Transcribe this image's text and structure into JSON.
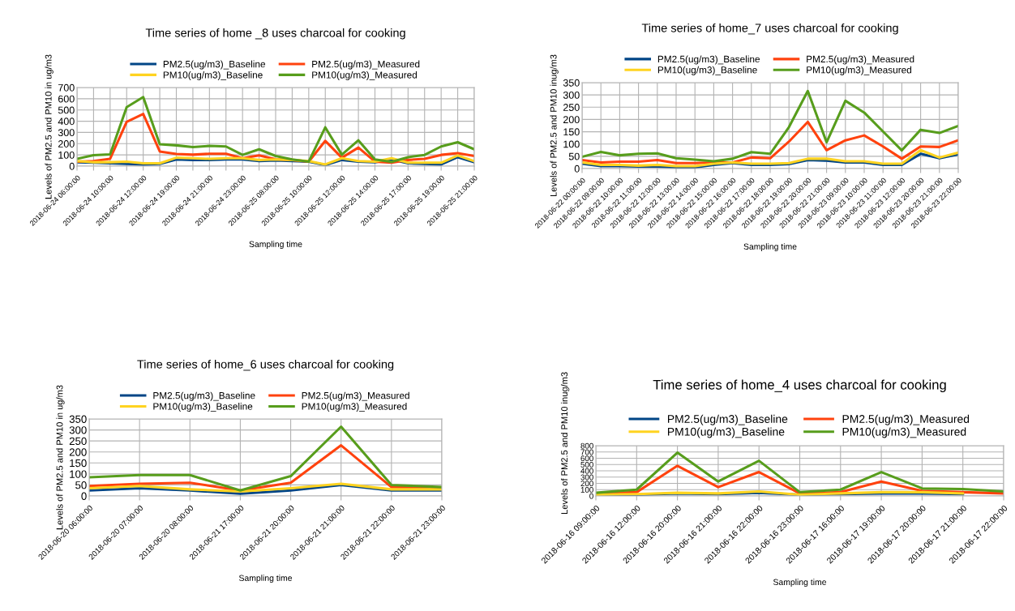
{
  "chart_data": [
    {
      "type": "line",
      "title": "Time series of home _8 uses charcoal for cooking",
      "xlabel": "Sampling time",
      "ylabel": "Levels of PM2.5 and PM10 in ug/m3",
      "categories": [
        "2018-06-24 06:00:00",
        null,
        "2018-06-24 10:00:00",
        null,
        "2018-06-24 12:00:00",
        null,
        "2018-06-24 19:00:00",
        null,
        "2018-06-24 21:00:00",
        null,
        "2018-06-24 23:00:00",
        null,
        "2018-06-25 08:00:00",
        null,
        "2018-06-25 10:00:00",
        null,
        "2018-06-25 12:00:00",
        null,
        "2018-06-25 14:00:00",
        null,
        "2018-06-25 17:00:00",
        null,
        "2018-06-25 19:00:00",
        null,
        "2018-06-25 21:00:00"
      ],
      "series": [
        {
          "name": "PM2.5(ug/m3)_Baseline",
          "color": "#004586",
          "values": [
            35,
            30,
            25,
            20,
            15,
            20,
            60,
            55,
            55,
            60,
            60,
            45,
            50,
            45,
            40,
            10,
            55,
            40,
            35,
            60,
            25,
            20,
            15,
            80,
            35
          ]
        },
        {
          "name": "PM2.5(ug/m3)_Measured",
          "color": "#ff420e",
          "values": [
            40,
            45,
            65,
            395,
            465,
            130,
            108,
            102,
            110,
            110,
            70,
            95,
            62,
            55,
            40,
            225,
            75,
            165,
            40,
            30,
            55,
            65,
            100,
            115,
            90
          ]
        },
        {
          "name": "PM10(ug/m3)_Baseline",
          "color": "#ffd320",
          "values": [
            45,
            35,
            35,
            40,
            25,
            25,
            75,
            70,
            65,
            70,
            70,
            55,
            60,
            55,
            45,
            15,
            70,
            45,
            40,
            70,
            30,
            30,
            30,
            95,
            45
          ]
        },
        {
          "name": "PM10(ug/m3)_Measured",
          "color": "#579d1c",
          "values": [
            65,
            97,
            105,
            525,
            615,
            195,
            185,
            170,
            180,
            175,
            100,
            150,
            90,
            60,
            40,
            345,
            102,
            230,
            60,
            38,
            80,
            100,
            175,
            213,
            150
          ]
        }
      ],
      "ylim": [
        0,
        700
      ],
      "yticks": [
        0,
        100,
        200,
        300,
        400,
        500,
        600,
        700
      ],
      "grid": true,
      "legend": "top",
      "marker": "none",
      "line_style": "solid"
    },
    {
      "type": "line",
      "title": "Time series of home_7 uses charcoal for cooking",
      "xlabel": "Sampling time",
      "ylabel": "Levels of PM2.5 and PM10 inug/m3",
      "categories": [
        "2018-06-22 00:00:00",
        "2018-06-22 09:00:00",
        "2018-06-22 10:00:00",
        "2018-06-22 11:00:00",
        "2018-06-22 12:00:00",
        "2018-06-22 13:00:00",
        "2018-06-22 14:00:00",
        "2018-06-22 15:00:00",
        "2018-06-22 16:00:00",
        "2018-06-22 17:00:00",
        "2018-06-22 18:00:00",
        "2018-06-22 19:00:00",
        "2018-06-22 20:00:00",
        "2018-06-22 21:00:00",
        "2018-06-23 09:00:00",
        "2018-06-23 10:00:00",
        "2018-06-23 11:00:00",
        "2018-06-23 12:00:00",
        "2018-06-23 20:00:00",
        "2018-06-23 21:00:00",
        "2018-06-23 22:00:00"
      ],
      "series": [
        {
          "name": "PM2.5(ug/m3)_Baseline",
          "color": "#004586",
          "values": [
            20,
            10,
            10,
            8,
            8,
            5,
            5,
            15,
            22,
            15,
            15,
            18,
            35,
            32,
            25,
            25,
            15,
            15,
            60,
            42,
            58
          ]
        },
        {
          "name": "PM2.5(ug/m3)_Measured",
          "color": "#ff420e",
          "values": [
            35,
            25,
            28,
            28,
            35,
            22,
            22,
            25,
            25,
            45,
            42,
            110,
            190,
            75,
            115,
            135,
            90,
            40,
            90,
            88,
            115
          ]
        },
        {
          "name": "PM10(ug/m3)_Baseline",
          "color": "#ffd320",
          "values": [
            25,
            15,
            15,
            12,
            15,
            10,
            10,
            20,
            25,
            20,
            20,
            22,
            40,
            40,
            30,
            30,
            20,
            20,
            75,
            45,
            65
          ]
        },
        {
          "name": "PM10(ug/m3)_Measured",
          "color": "#579d1c",
          "values": [
            48,
            68,
            54,
            60,
            62,
            42,
            36,
            30,
            40,
            67,
            60,
            169,
            316,
            107,
            276,
            228,
            151,
            74,
            158,
            145,
            174
          ]
        }
      ],
      "ylim": [
        0,
        350
      ],
      "yticks": [
        0,
        50,
        100,
        150,
        200,
        250,
        300,
        350
      ],
      "grid": true,
      "legend": "top",
      "marker": "none",
      "line_style": "solid"
    },
    {
      "type": "line",
      "title": "Time series of home_6 uses charcoal for cooking",
      "xlabel": "Sampling time",
      "ylabel": "Levels of PM2.5 and PM10 in ug/m3",
      "categories": [
        "2018-06-20 06:00:00",
        "2018-06-20 07:00:00",
        "2018-06-20 08:00:00",
        "2018-06-21 17:00:00",
        "2018-06-21 20:00:00",
        "2018-06-21 21:00:00",
        "2018-06-21 22:00:00",
        "2018-06-21 23:00:00"
      ],
      "series": [
        {
          "name": "PM2.5(ug/m3)_Baseline",
          "color": "#004586",
          "values": [
            25,
            35,
            25,
            10,
            25,
            50,
            25,
            25
          ]
        },
        {
          "name": "PM2.5(ug/m3)_Measured",
          "color": "#ff420e",
          "values": [
            45,
            55,
            60,
            25,
            60,
            230,
            40,
            35
          ]
        },
        {
          "name": "PM10(ug/m3)_Baseline",
          "color": "#ffd320",
          "values": [
            35,
            45,
            30,
            20,
            35,
            55,
            30,
            30
          ]
        },
        {
          "name": "PM10(ug/m3)_Measured",
          "color": "#579d1c",
          "values": [
            85,
            95,
            95,
            25,
            90,
            315,
            50,
            40
          ]
        }
      ],
      "ylim": [
        0,
        350
      ],
      "yticks": [
        0,
        50,
        100,
        150,
        200,
        250,
        300,
        350
      ],
      "grid": true,
      "legend": "top",
      "marker": "none",
      "line_style": "solid"
    },
    {
      "type": "line",
      "title": "Time series of home_4 uses charcoal for cooking",
      "xlabel": "Sampling time",
      "ylabel": "Levels of PM2.5 and PM10 inug/m3",
      "categories": [
        "2018-06-16 09:00:00",
        "2018-06-16 12:00:00",
        "2018-06-16 20:00:00",
        "2018-06-16 21:00:00",
        "2018-06-16 22:00:00",
        "2018-06-16 23:00:00",
        "2018-06-17 16:00:00",
        "2018-06-17 19:00:00",
        "2018-06-17 20:00:00",
        "2018-06-17 21:00:00",
        "2018-06-17 22:00:00"
      ],
      "series": [
        {
          "name": "PM2.5(ug/m3)_Baseline",
          "color": "#004586",
          "values": [
            20,
            20,
            40,
            30,
            50,
            20,
            30,
            40,
            40,
            30,
            null
          ]
        },
        {
          "name": "PM2.5(ug/m3)_Measured",
          "color": "#ff420e",
          "values": [
            40,
            60,
            480,
            140,
            380,
            40,
            60,
            230,
            80,
            60,
            40
          ]
        },
        {
          "name": "PM10(ug/m3)_Baseline",
          "color": "#ffd320",
          "values": [
            20,
            30,
            50,
            40,
            70,
            20,
            40,
            60,
            60,
            40,
            null
          ]
        },
        {
          "name": "PM10(ug/m3)_Measured",
          "color": "#579d1c",
          "values": [
            50,
            100,
            690,
            230,
            560,
            60,
            100,
            380,
            120,
            110,
            70
          ]
        }
      ],
      "ylim": [
        0,
        800
      ],
      "yticks": [
        0,
        100,
        200,
        300,
        400,
        500,
        600,
        700,
        800
      ],
      "grid": true,
      "legend": "top",
      "marker": "none",
      "line_style": "solid"
    }
  ]
}
